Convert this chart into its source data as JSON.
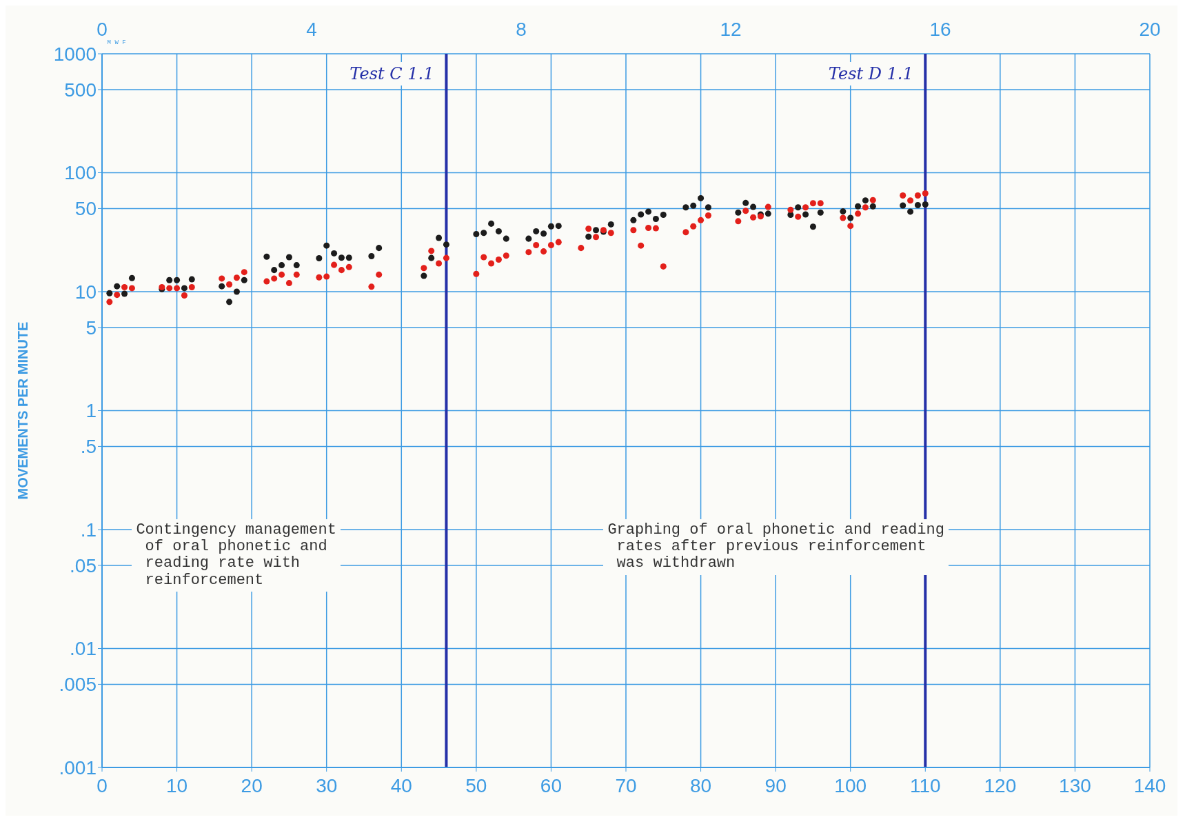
{
  "chart_data": {
    "type": "scatter",
    "ylabel": "MOVEMENTS PER MINUTE",
    "x": [
      1,
      2,
      3,
      4,
      8,
      9,
      10,
      11,
      12,
      16,
      17,
      18,
      19,
      22,
      23,
      24,
      25,
      26,
      29,
      30,
      31,
      32,
      33,
      36,
      37,
      43,
      44,
      45,
      46,
      50,
      51,
      52,
      53,
      54,
      57,
      58,
      59,
      60,
      61,
      64,
      65,
      66,
      67,
      68,
      71,
      72,
      73,
      74,
      75,
      78,
      79,
      80,
      81,
      85,
      86,
      87,
      88,
      89,
      92,
      93,
      94,
      95,
      96,
      99,
      100,
      101,
      102,
      103,
      107,
      108,
      109,
      110
    ],
    "series": [
      {
        "color": "#1c1c1c",
        "values": [
          9.7,
          11.1,
          9.6,
          13.0,
          10.5,
          12.5,
          12.5,
          10.7,
          12.7,
          11.1,
          8.2,
          10.0,
          12.5,
          19.7,
          15.2,
          16.7,
          19.5,
          16.7,
          19.1,
          24.4,
          21.0,
          19.3,
          19.3,
          19.9,
          23.3,
          13.6,
          19.2,
          28.3,
          24.9,
          30.5,
          31.2,
          37.3,
          32.2,
          27.9,
          27.9,
          32.2,
          30.8,
          35.4,
          35.7,
          null,
          29.0,
          32.9,
          31.9,
          36.8,
          39.9,
          44.6,
          47.1,
          40.9,
          44.3,
          51.1,
          52.8,
          61.1,
          51.1,
          46.3,
          55.7,
          51.6,
          44.6,
          45.3,
          44.3,
          51.1,
          44.6,
          35.2,
          46.3,
          47.3,
          41.7,
          52.2,
          58.5,
          52.2,
          53.0,
          47.1,
          53.4,
          54.1
        ]
      },
      {
        "color": "#e3201b",
        "values": [
          8.2,
          9.4,
          10.9,
          10.7,
          10.9,
          10.7,
          10.7,
          9.3,
          10.9,
          12.9,
          11.5,
          13.1,
          14.6,
          12.2,
          12.9,
          13.9,
          11.8,
          13.9,
          13.2,
          13.4,
          16.8,
          15.2,
          16.1,
          11.0,
          13.9,
          15.8,
          22.0,
          17.3,
          19.2,
          14.1,
          19.5,
          17.3,
          18.6,
          20.1,
          21.5,
          24.6,
          21.8,
          24.6,
          26.1,
          23.3,
          33.8,
          28.8,
          32.9,
          31.2,
          32.9,
          24.4,
          34.4,
          34.1,
          16.3,
          31.6,
          35.4,
          39.9,
          43.7,
          39.1,
          47.8,
          42.1,
          43,
          51.6,
          48.8,
          42.7,
          51.1,
          55.4,
          55.4,
          41.7,
          35.7,
          45.3,
          51.1,
          58.9,
          64.4,
          58.4,
          64.4,
          67.0
        ]
      }
    ],
    "marker": "circle",
    "log": "y",
    "grid": true,
    "xlim": [
      0,
      140
    ],
    "xticks": [
      0,
      10,
      20,
      30,
      40,
      50,
      60,
      70,
      80,
      90,
      100,
      110,
      120,
      130,
      140
    ],
    "x2lim": [
      0,
      20
    ],
    "x2ticks": [
      0,
      4,
      8,
      12,
      16,
      20
    ],
    "ylim": [
      0.001,
      1000
    ],
    "yticks": [
      1000,
      500,
      100,
      50,
      10,
      5,
      1,
      {
        "value": 0.5,
        "label": ".5"
      },
      {
        "value": 0.1,
        "label": ".1"
      },
      {
        "value": 0.05,
        "label": ".05"
      },
      {
        "value": 0.01,
        "label": ".01"
      },
      {
        "value": 0.005,
        "label": ".005"
      },
      {
        "value": 0.001,
        "label": ".001"
      }
    ],
    "ref_lines": [
      {
        "axis": "x",
        "value": 46,
        "label": "Test C 1.1",
        "color": "#2530a8"
      },
      {
        "axis": "x",
        "value": 110,
        "label": "Test D 1.1",
        "color": "#2530a8"
      }
    ],
    "annotations": [
      "Contingency management\n of oral phonetic and\n reading rate with\n reinforcement",
      "Graphing of oral phonetic and reading\n rates after previous reinforcement\n was withdrawn",
      "M W F"
    ]
  }
}
